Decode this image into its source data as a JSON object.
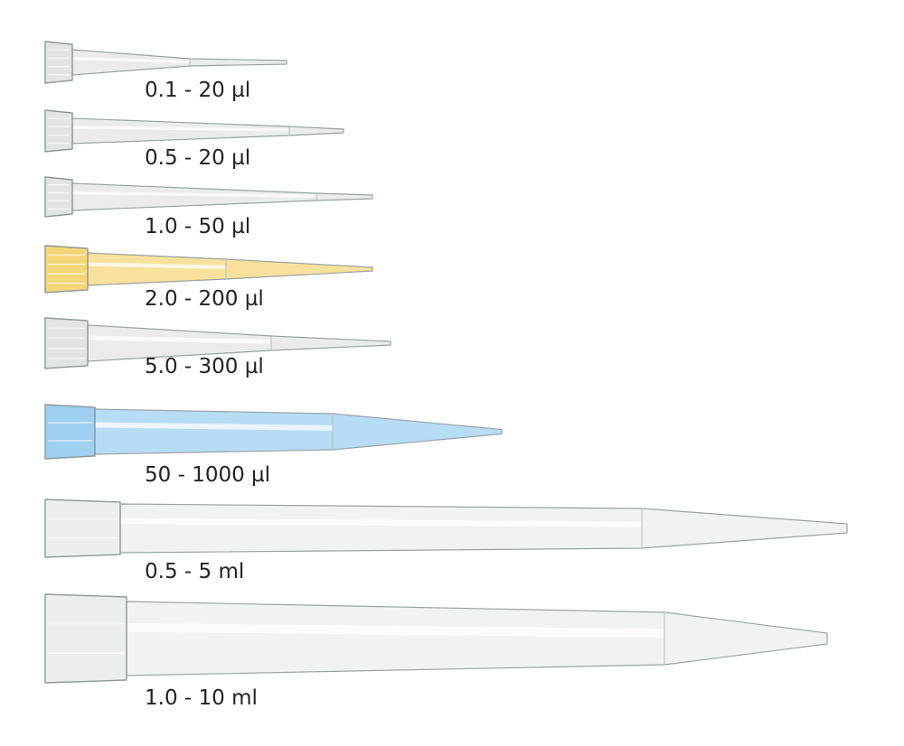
{
  "tips": [
    {
      "label": "0.1 - 20 µl",
      "color": "#d8dcdc"
    },
    {
      "label": "0.5 - 20 µl",
      "color": "#d8dcdc"
    },
    {
      "label": "1.0 - 50 µl",
      "color": "#d8dcdc"
    },
    {
      "label": "2.0 - 200 µl",
      "color": "#f2c94c"
    },
    {
      "label": "5.0 - 300 µl",
      "color": "#d8dcdc"
    },
    {
      "label": "50 - 1000 µl",
      "color": "#7cc0ec"
    },
    {
      "label": "0.5 - 5 ml",
      "color": "#e4eaea"
    },
    {
      "label": "1.0 - 10 ml",
      "color": "#e4eaea"
    }
  ]
}
